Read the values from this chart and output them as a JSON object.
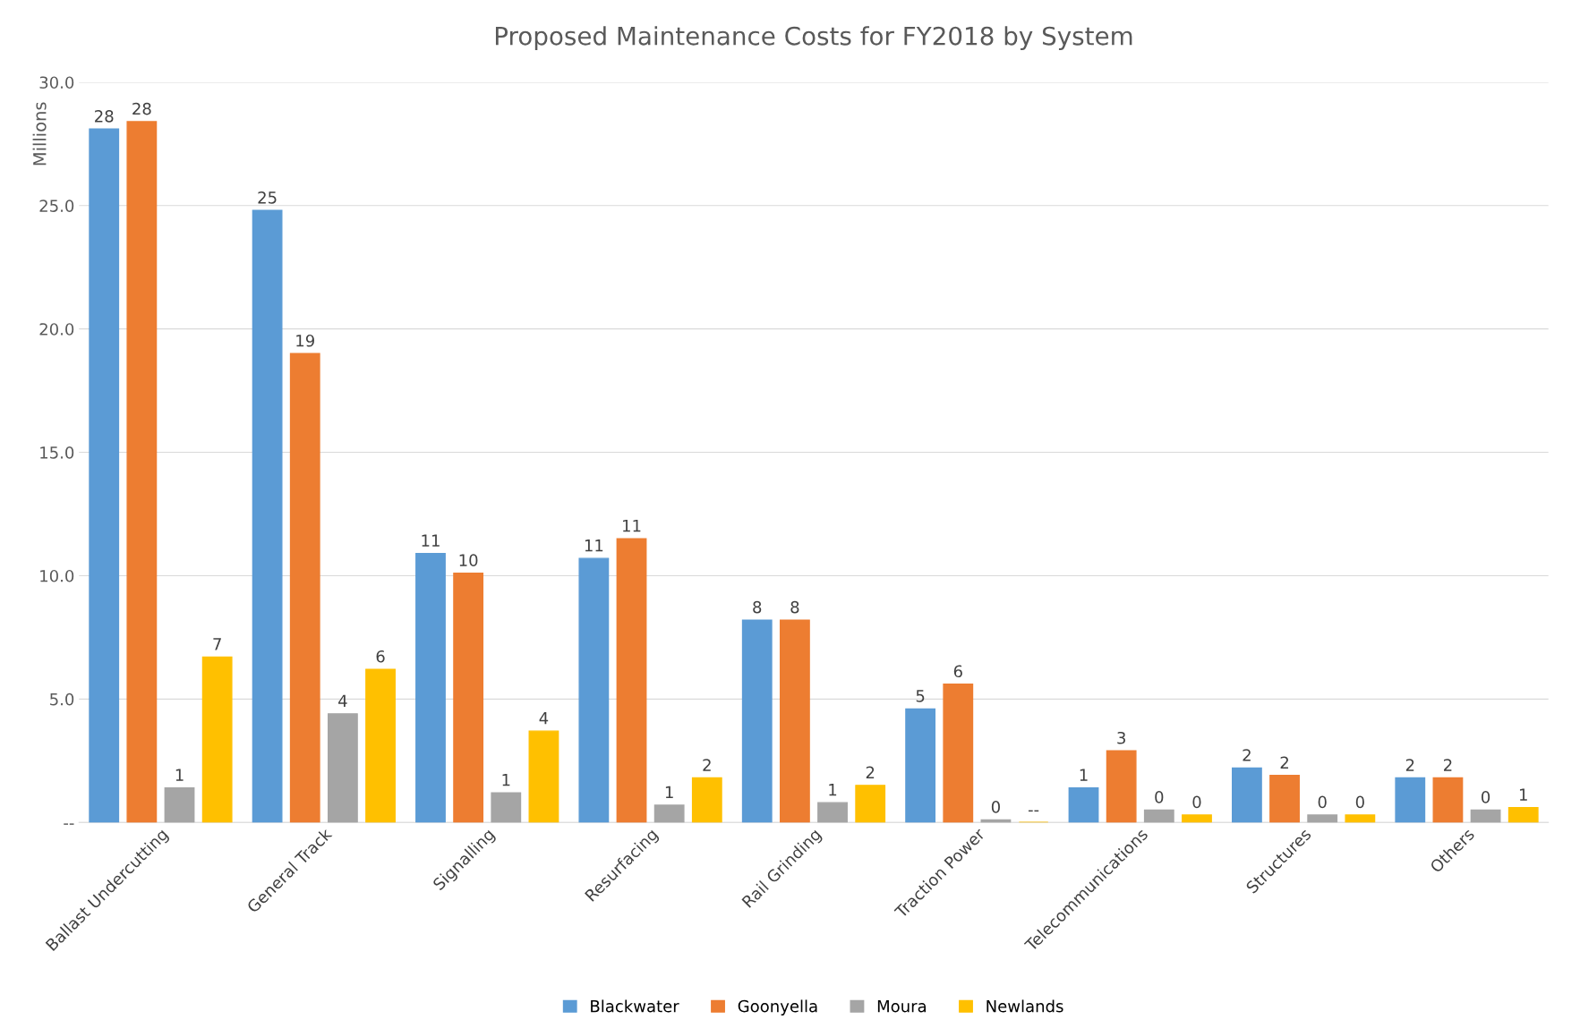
{
  "chart_data": {
    "type": "bar",
    "title": "Proposed Maintenance Costs for FY2018 by System",
    "ylabel": "Millions",
    "categories": [
      "Ballast Undercutting",
      "General Track",
      "Signalling",
      "Resurfacing",
      "Rail Grinding",
      "Traction Power",
      "Telecommunications",
      "Structures",
      "Others"
    ],
    "series": [
      {
        "name": "Blackwater",
        "color": "#5b9bd5",
        "values": [
          28.1,
          24.8,
          10.9,
          10.7,
          8.2,
          4.6,
          1.4,
          2.2,
          1.8
        ],
        "value_labels": [
          "28",
          "25",
          "11",
          "11",
          "8",
          "5",
          "1",
          "2",
          "2"
        ]
      },
      {
        "name": "Goonyella",
        "color": "#ed7d31",
        "values": [
          28.4,
          19.0,
          10.1,
          11.5,
          8.2,
          5.6,
          2.9,
          1.9,
          1.8
        ],
        "value_labels": [
          "28",
          "19",
          "10",
          "11",
          "8",
          "6",
          "3",
          "2",
          "2"
        ]
      },
      {
        "name": "Moura",
        "color": "#a5a5a5",
        "values": [
          1.4,
          4.4,
          1.2,
          0.7,
          0.8,
          0.1,
          0.5,
          0.3,
          0.5
        ],
        "value_labels": [
          "1",
          "4",
          "1",
          "1",
          "1",
          "0",
          "0",
          "0",
          "0"
        ]
      },
      {
        "name": "Newlands",
        "color": "#ffc000",
        "values": [
          6.7,
          6.2,
          3.7,
          1.8,
          1.5,
          0,
          0.3,
          0.3,
          0.6
        ],
        "value_labels": [
          "7",
          "6",
          "4",
          "2",
          "2",
          "--",
          "0",
          "0",
          "1"
        ]
      }
    ],
    "ylim": [
      0,
      30
    ],
    "yticks": [
      {
        "value": 0,
        "label": "--"
      },
      {
        "value": 5,
        "label": "5.0"
      },
      {
        "value": 10,
        "label": "10.0"
      },
      {
        "value": 15,
        "label": "15.0"
      },
      {
        "value": 20,
        "label": "20.0"
      },
      {
        "value": 25,
        "label": "25.0"
      },
      {
        "value": 30,
        "label": "30.0"
      }
    ],
    "grid": "y",
    "legend": "bottom"
  }
}
